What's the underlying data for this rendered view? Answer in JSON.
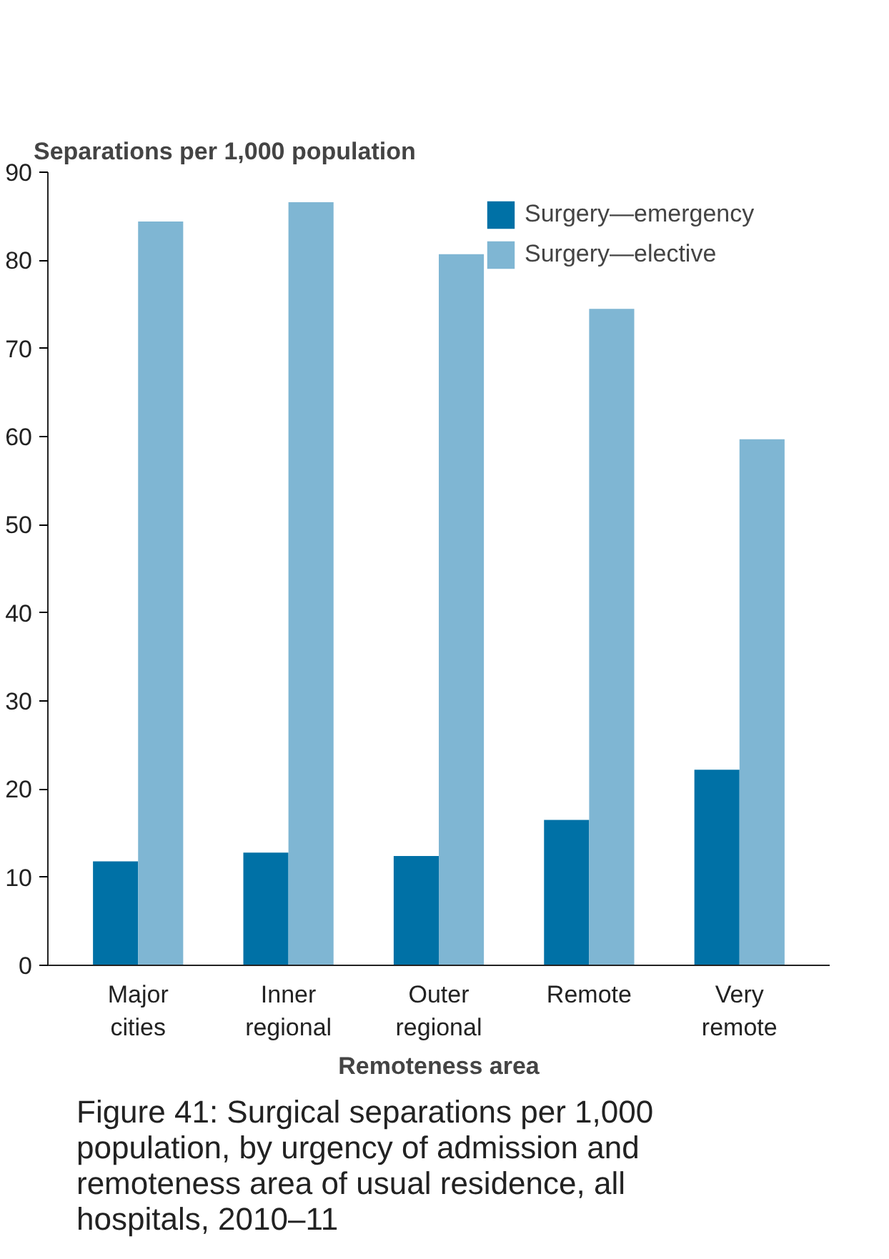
{
  "chart_data": {
    "type": "bar",
    "title": "Figure 41: Surgical separations per 1,000 population, by urgency of admission and remoteness area of usual residence, all hospitals, 2010–11",
    "xlabel": "Remoteness area",
    "ylabel": "Separations per 1,000 population",
    "categories": [
      "Major\ncities",
      "Inner\nregional",
      "Outer\nregional",
      "Remote",
      "Very\nremote"
    ],
    "series": [
      {
        "name": "Surgery—emergency",
        "color": "#0071a6",
        "values": [
          11.8,
          12.8,
          12.4,
          16.5,
          22.2
        ]
      },
      {
        "name": "Surgery—elective",
        "color": "#7fb6d3",
        "values": [
          84.4,
          86.6,
          80.7,
          74.5,
          59.7
        ]
      }
    ],
    "ylim": [
      0,
      90
    ],
    "yticks": [
      0,
      10,
      20,
      30,
      40,
      50,
      60,
      70,
      80,
      90
    ],
    "grid": false,
    "legend": "top right"
  }
}
